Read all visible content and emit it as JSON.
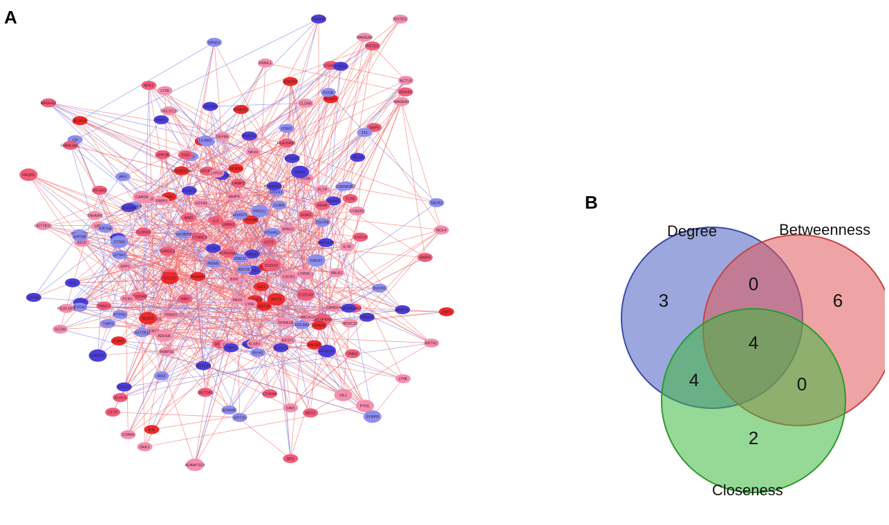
{
  "panels": {
    "a_label": "A",
    "b_label": "B"
  },
  "network": {
    "colors": {
      "red_strong": "#ee2a2a",
      "red_mid": "#f25c7a",
      "pink": "#f58fae",
      "blue": "#4a3fdc",
      "blue_light": "#8c8ef0",
      "edge_red": "#f06b6b",
      "edge_blue": "#7c7ce8"
    },
    "node_labels": [
      "MAGEE2",
      "CSAG1",
      "CTAG2",
      "MAGEA9",
      "PRAME",
      "DDX43",
      "ACTL8",
      "MAGEA1",
      "POTED",
      "SPNS1",
      "NLRP2",
      "FMNL1",
      "POTEG",
      "CLDN6",
      "PTCHD1",
      "CORIN",
      "DSCR8",
      "TPM2",
      "RNF113B",
      "CLDN19",
      "DSCR4",
      "CATSPERB",
      "CMTM7",
      "TNNC1",
      "ATP6V1C2",
      "SYNDIG1",
      "BSN",
      "FAM180A1",
      "SPAG1",
      "NHLH2",
      "BCAS4",
      "SIM1",
      "RGS4",
      "TMIGF2",
      "SHANK1",
      "SYNPR",
      "CHRNB3",
      "LAMP3",
      "EGR3",
      "ODF4",
      "CACNG2",
      "MYH2",
      "ARX",
      "PARVB",
      "HBG1",
      "SCGN",
      "LRGUK",
      "ATP6V0A4",
      "CT45A5",
      "SAA1",
      "FOSB",
      "HBA1",
      "HBA2",
      "MYT1",
      "MYSM1",
      "SPI1",
      "MILR1",
      "BIRC3",
      "HLA-DRB1",
      "CMTM5",
      "BEX2",
      "CTSW",
      "ALAS2",
      "HBD",
      "NKX6",
      "NOL4",
      "FKBP10",
      "UBD",
      "ABO",
      "PTPRC",
      "KLHL6",
      "IL19",
      "GABRB3",
      "CYB5R1",
      "GTSF1",
      "REC8",
      "TRIM22",
      "TLR8",
      "CD72",
      "CXCR1",
      "NFE2",
      "CXCL5",
      "INSM1",
      "LRRK2",
      "IL7R",
      "LY96",
      "CAPZA3",
      "CCL3",
      "PROX1",
      "FOXC1",
      "OSR2",
      "FOLR1",
      "LILRB3",
      "IL3",
      "CXCL3",
      "TACR1",
      "PAX6",
      "BEST1",
      "SIX1",
      "LST1",
      "SIGLEC10",
      "RNASE2",
      "TYROBP",
      "FABP5",
      "CCL20",
      "CETP",
      "APOC1",
      "ENDP",
      "DACH1",
      "LYPD6",
      "MMP25",
      "ADAM8",
      "S100A8",
      "PLTP",
      "PTGDS",
      "BMP7",
      "RTN4RL2",
      "ADAMDEC1",
      "CLEC4D",
      "TNFAIP6",
      "GBP5",
      "FCN1",
      "SPP1",
      "FGG",
      "ELOVL4",
      "DKK1",
      "CHRDL2",
      "IRX2",
      "GCNT2",
      "LY6E",
      "LY6K",
      "VNN2",
      "ALPL",
      "CEACAM3",
      "IDO1",
      "CP",
      "FADS1",
      "COL8A1",
      "CRYBB3",
      "HS3ST2",
      "PAQR5",
      "LYPD2",
      "LCN2",
      "PLEK",
      "CARD6",
      "PI3",
      "DEFA4",
      "KLKB1",
      "S100A10",
      "ABCA12",
      "IFI6",
      "IFI44L",
      "TNIP3",
      "IFITM3",
      "ICAM1",
      "ZBP1",
      "AIM2",
      "MMP9",
      "DUOX1",
      "DUOX2",
      "BNIP5",
      "NMMT",
      "HOXC11",
      "HOXC13",
      "IGF2BP3",
      "GBNK1A1L",
      "CLECL1",
      "PDZK1IP1",
      "CTHRC1",
      "CUBN",
      "PYGL",
      "A1CF",
      "HOXC10",
      "ZBED2",
      "VEPH1",
      "ADAMTS19",
      "KRT20",
      "SPRR1B",
      "FBP2",
      "UPK1B",
      "UGT2B10",
      "PCOLCE2",
      "LCE3D",
      "KRT23",
      "KRT6A",
      "GSTA1",
      "APOBEC3A",
      "SCRG1",
      "KRT35",
      "KRT6B",
      "KRT6C",
      "GPA33",
      "ADH1A",
      "UGT2B11",
      "CARD14",
      "VIL1",
      "UGT2A3",
      "ADH6",
      "GSTA3"
    ]
  },
  "venn": {
    "sets": [
      {
        "name": "Degree",
        "color": "#4a5fc1"
      },
      {
        "name": "Betweenness",
        "color": "#e05a5a"
      },
      {
        "name": "Closeness",
        "color": "#3fb83f"
      }
    ],
    "counts": {
      "degree_only": "3",
      "betweenness_only": "6",
      "closeness_only": "2",
      "degree_betweenness": "0",
      "degree_closeness": "4",
      "betweenness_closeness": "0",
      "all_three": "4"
    }
  }
}
